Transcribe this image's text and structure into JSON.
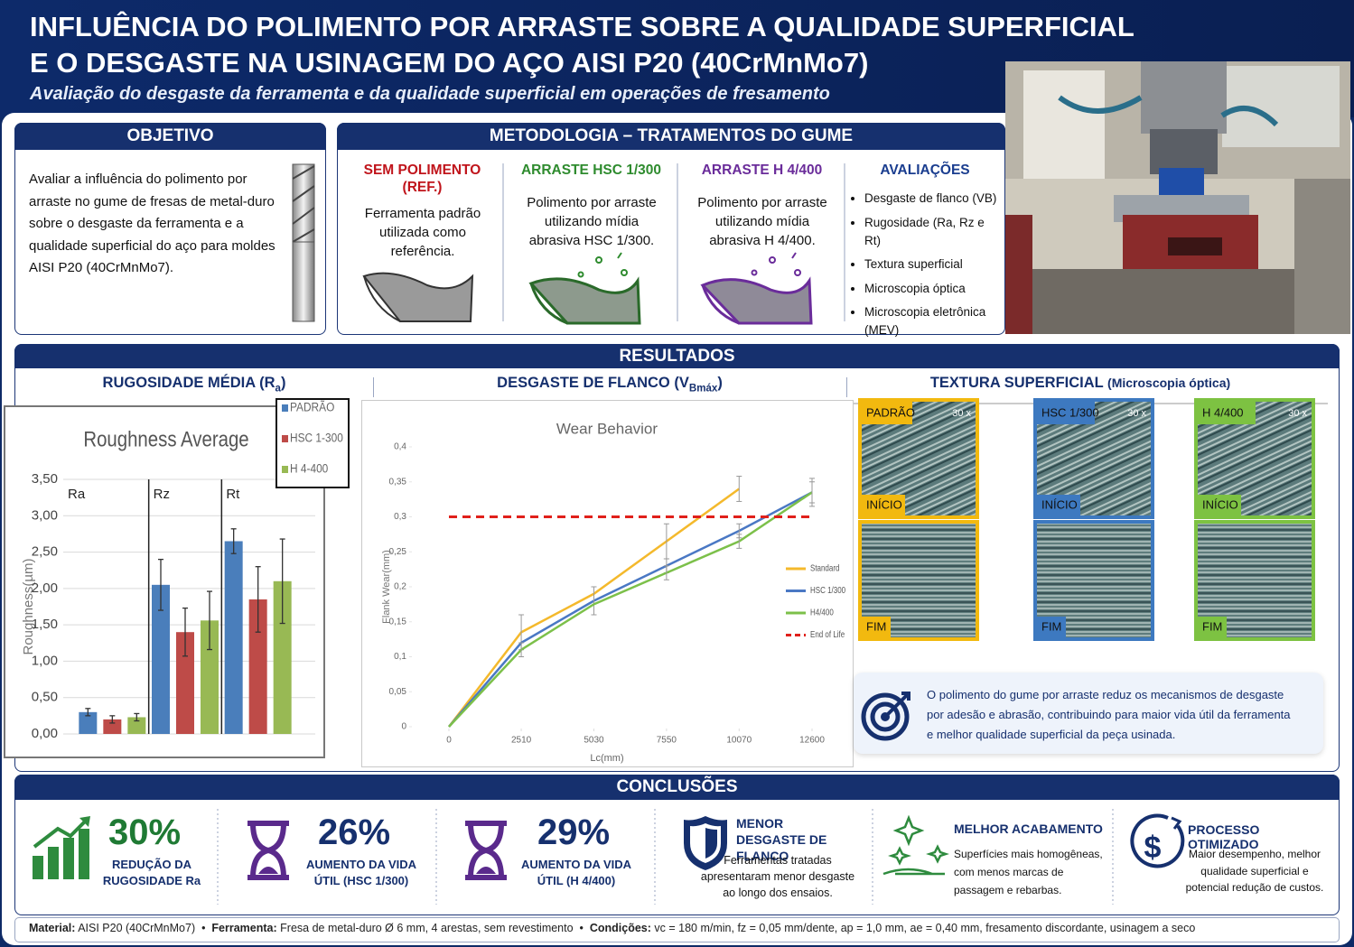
{
  "header": {
    "title_line1": "INFLUÊNCIA DO POLIMENTO POR ARRASTE SOBRE A QUALIDADE SUPERFICIAL",
    "title_line2": "E O DESGASTE NA USINAGEM DO AÇO AISI P20 (40CrMnMo7)",
    "subtitle": "Avaliação do desgaste da ferramenta e da qualidade superficial em operações de fresamento"
  },
  "objective": {
    "heading": "OBJETIVO",
    "text": "Avaliar a influência do polimento por arraste no gume de fresas de metal-duro sobre o desgaste da ferramenta e a qualidade superficial do aço para moldes AISI P20 (40CrMnMo7)."
  },
  "methodology": {
    "heading": "METODOLOGIA – TRATAMENTOS DO GUME",
    "treatments": [
      {
        "title": "SEM POLIMENTO (REF.)",
        "text": "Ferramenta padrão utilizada como referência.",
        "color": "#c0141b"
      },
      {
        "title": "ARRASTE HSC 1/300",
        "text": "Polimento por arraste utilizando mídia abrasiva HSC 1/300.",
        "color": "#2e8b2e"
      },
      {
        "title": "ARRASTE H 4/400",
        "text": "Polimento por arraste utilizando mídia abrasiva H 4/400.",
        "color": "#6a2c9a"
      }
    ],
    "evaluations": {
      "title": "AVALIAÇÕES",
      "items": [
        "Desgaste de flanco (VB)",
        "Rugosidade (Ra, Rz e Rt)",
        "Textura superficial",
        "Microscopia óptica",
        "Microscopia eletrônica (MEV)"
      ]
    }
  },
  "results": {
    "heading": "RESULTADOS",
    "roughness_heading": {
      "text": "RUGOSIDADE MÉDIA (R",
      "sub": "a",
      "end": ")"
    },
    "wear_heading": {
      "text": "DESGASTE DE FLANCO (V",
      "sub": "Bmáx",
      "end": ")"
    },
    "texture_heading": {
      "text": "TEXTURA SUPERFICIAL",
      "detail": "(Microscopia óptica)"
    },
    "texture": {
      "samples": [
        {
          "name": "PADRÃO",
          "color": "#f2b90f"
        },
        {
          "name": "HSC 1/300",
          "color": "#3d79c0"
        },
        {
          "name": "H 4/400",
          "color": "#7dc242"
        }
      ],
      "magnification": "30 x",
      "start": "INÍCIO",
      "end": "FIM"
    },
    "note": "O polimento do gume por arraste reduz os mecanismos de desgaste por adesão e abrasão, contribuindo para maior vida útil da ferramenta e melhor qualidade superficial da peça usinada."
  },
  "chart_data": [
    {
      "type": "bar",
      "title": "Roughness Average",
      "y_label": "Roughness(µm)",
      "categories": [
        "Ra",
        "Rz",
        "Rt"
      ],
      "series": [
        {
          "name": "PADRÃO",
          "color": "#4a7ebb",
          "values": [
            0.3,
            2.05,
            2.65
          ],
          "errors": [
            0.05,
            0.35,
            0.17
          ]
        },
        {
          "name": "HSC 1-300",
          "color": "#be4b48",
          "values": [
            0.2,
            1.4,
            1.85
          ],
          "errors": [
            0.05,
            0.33,
            0.45
          ]
        },
        {
          "name": "H 4-400",
          "color": "#98b954",
          "values": [
            0.23,
            1.56,
            2.1
          ],
          "errors": [
            0.05,
            0.4,
            0.58
          ]
        }
      ],
      "ylim": [
        0,
        3.5
      ],
      "yticks": [
        {
          "value": 0,
          "label": "0,00"
        },
        {
          "value": 0.5,
          "label": "0,50"
        },
        {
          "value": 1,
          "label": "1,00"
        },
        {
          "value": 1.5,
          "label": "1,50"
        },
        {
          "value": 2,
          "label": "2,00"
        },
        {
          "value": 2.5,
          "label": "2,50"
        },
        {
          "value": 3,
          "label": "3,00"
        },
        {
          "value": 3.5,
          "label": "3,50"
        }
      ],
      "grid": true
    },
    {
      "type": "line",
      "title": "Wear Behavior",
      "x_label": "Lc(mm)",
      "y_label": "Flank Wear(mm)",
      "x": [
        0,
        2510,
        5030,
        7550,
        10070,
        12600
      ],
      "xlim": [
        0,
        12600
      ],
      "xticks": [
        0,
        2510,
        5030,
        7550,
        10070,
        12600
      ],
      "ylim": [
        0,
        0.4
      ],
      "yticks": [
        0,
        {
          "value": 0.05,
          "label": "0,05"
        },
        {
          "value": 0.1,
          "label": "0,1"
        },
        {
          "value": 0.15,
          "label": "0,15"
        },
        {
          "value": 0.2,
          "label": "0,2"
        },
        {
          "value": 0.25,
          "label": "0,25"
        },
        {
          "value": 0.3,
          "label": "0,3"
        },
        {
          "value": 0.35,
          "label": "0,35"
        },
        {
          "value": 0.4,
          "label": "0,4"
        }
      ],
      "grid": false,
      "series": [
        {
          "name": "Standard",
          "color": "#f4b92c",
          "values": [
            0,
            0.135,
            0.19,
            0.265,
            0.34,
            null
          ],
          "errors": [
            null,
            0.025,
            null,
            0.025,
            0.018,
            null
          ]
        },
        {
          "name": "HSC 1/300",
          "color": "#4a78c4",
          "values": [
            0,
            0.12,
            0.18,
            0.23,
            0.28,
            0.335
          ],
          "errors": [
            null,
            null,
            0.02,
            0.01,
            0.01,
            0.02
          ]
        },
        {
          "name": "H4/400",
          "color": "#7cc04a",
          "values": [
            0,
            0.11,
            0.175,
            0.22,
            0.265,
            0.335
          ],
          "errors": [
            null,
            0.01,
            null,
            0.01,
            0.01,
            0.015
          ]
        },
        {
          "name": "End of Life",
          "color": "#e0201b",
          "dash": true,
          "values": [
            0.3,
            0.3,
            0.3,
            0.3,
            0.3,
            0.3
          ]
        }
      ]
    }
  ],
  "conclusions": {
    "heading": "CONCLUSÕES",
    "items": [
      {
        "value": "30%",
        "label": "REDUÇÃO DA RUGOSIDADE Ra"
      },
      {
        "value": "26%",
        "label": "AUMENTO DA VIDA ÚTIL (HSC 1/300)"
      },
      {
        "value": "29%",
        "label": "AUMENTO DA VIDA ÚTIL (H 4/400)"
      },
      {
        "title": "MENOR DESGASTE DE FLANCO",
        "text": "Ferramentas tratadas apresentaram menor desgaste ao longo dos ensaios."
      },
      {
        "title": "MELHOR ACABAMENTO",
        "text": "Superfícies mais homogêneas, com menos marcas de passagem e rebarbas."
      },
      {
        "title": "PROCESSO OTIMIZADO",
        "text": "Maior desempenho, melhor qualidade superficial e potencial redução de custos."
      }
    ]
  },
  "footer": [
    {
      "label": "Material:",
      "text": "AISI P20 (40CrMnMo7)"
    },
    {
      "label": "Ferramenta:",
      "text": "Fresa de metal-duro Ø 6 mm, 4 arestas, sem revestimento"
    },
    {
      "label": "Condições:",
      "text": "vc = 180 m/min, fz = 0,05 mm/dente, ap = 1,0 mm, ae = 0,40 mm, fresamento discordante, usinagem a seco"
    }
  ]
}
